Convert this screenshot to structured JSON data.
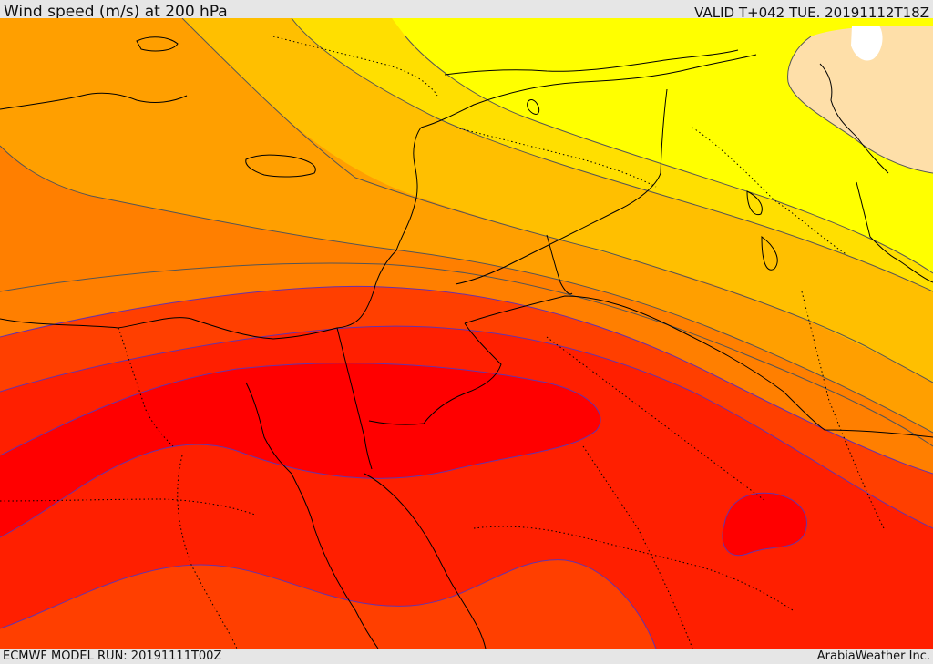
{
  "header": {
    "title": "Wind speed (m/s) at 200 hPa",
    "valid_time": "VALID T+042 TUE. 20191112T18Z"
  },
  "footer": {
    "model_run": "ECMWF MODEL RUN: 20191111T00Z",
    "credit": "ArabiaWeather Inc."
  },
  "map": {
    "field": "wind-speed-200hpa",
    "colors": {
      "peach": "#fedfa9",
      "yellow": "#ffff00",
      "gold": "#ffdf00",
      "amber": "#ffbf00",
      "orange_light": "#ff9f00",
      "orange": "#ff7f00",
      "orange_dark": "#ff5f00",
      "red_orange": "#ff3f00",
      "red": "#ff1f00",
      "red_core": "#ff0000",
      "contour_line": "#555555",
      "contour_line_red": "#6633aa",
      "coast_line": "#000000"
    }
  }
}
